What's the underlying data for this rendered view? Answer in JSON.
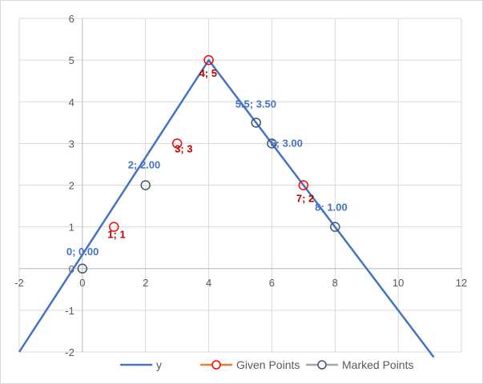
{
  "chart_data": {
    "type": "scatter",
    "title": "",
    "xlabel": "",
    "ylabel": "",
    "xlim": [
      -2,
      12
    ],
    "ylim": [
      -2,
      6
    ],
    "xticks": [
      -2,
      0,
      2,
      4,
      6,
      8,
      10,
      12
    ],
    "yticks": [
      -2,
      -1,
      0,
      1,
      2,
      3,
      4,
      5,
      6
    ],
    "grid": {
      "horizontal": true,
      "vertical": true
    },
    "legend_position": "bottom",
    "series": [
      {
        "name": "y",
        "style": "line",
        "color": "#4472c4",
        "x": [
          -2,
          4,
          11.125
        ],
        "y": [
          -2,
          5,
          -2.125
        ]
      },
      {
        "name": "Given Points",
        "style": "markers",
        "marker_color": "#ff0000",
        "legend_color": "#ed7d31",
        "label_color": "#c00000",
        "x": [
          1,
          3,
          4,
          7
        ],
        "y": [
          1,
          3,
          5,
          2
        ],
        "labels": [
          "1; 1",
          "3; 3",
          "4; 5",
          "7; 2"
        ]
      },
      {
        "name": "Marked Points",
        "style": "markers",
        "marker_color": "#44546a",
        "legend_color": "#a5a5a5",
        "label_color": "#4472c4",
        "x": [
          0,
          2,
          5.5,
          6,
          8
        ],
        "y": [
          0,
          2,
          3.5,
          3,
          1
        ],
        "labels": [
          "0; 0.00",
          "2; 2.00",
          "5.5; 3.50",
          "6; 3.00",
          "8; 1.00"
        ]
      }
    ]
  }
}
